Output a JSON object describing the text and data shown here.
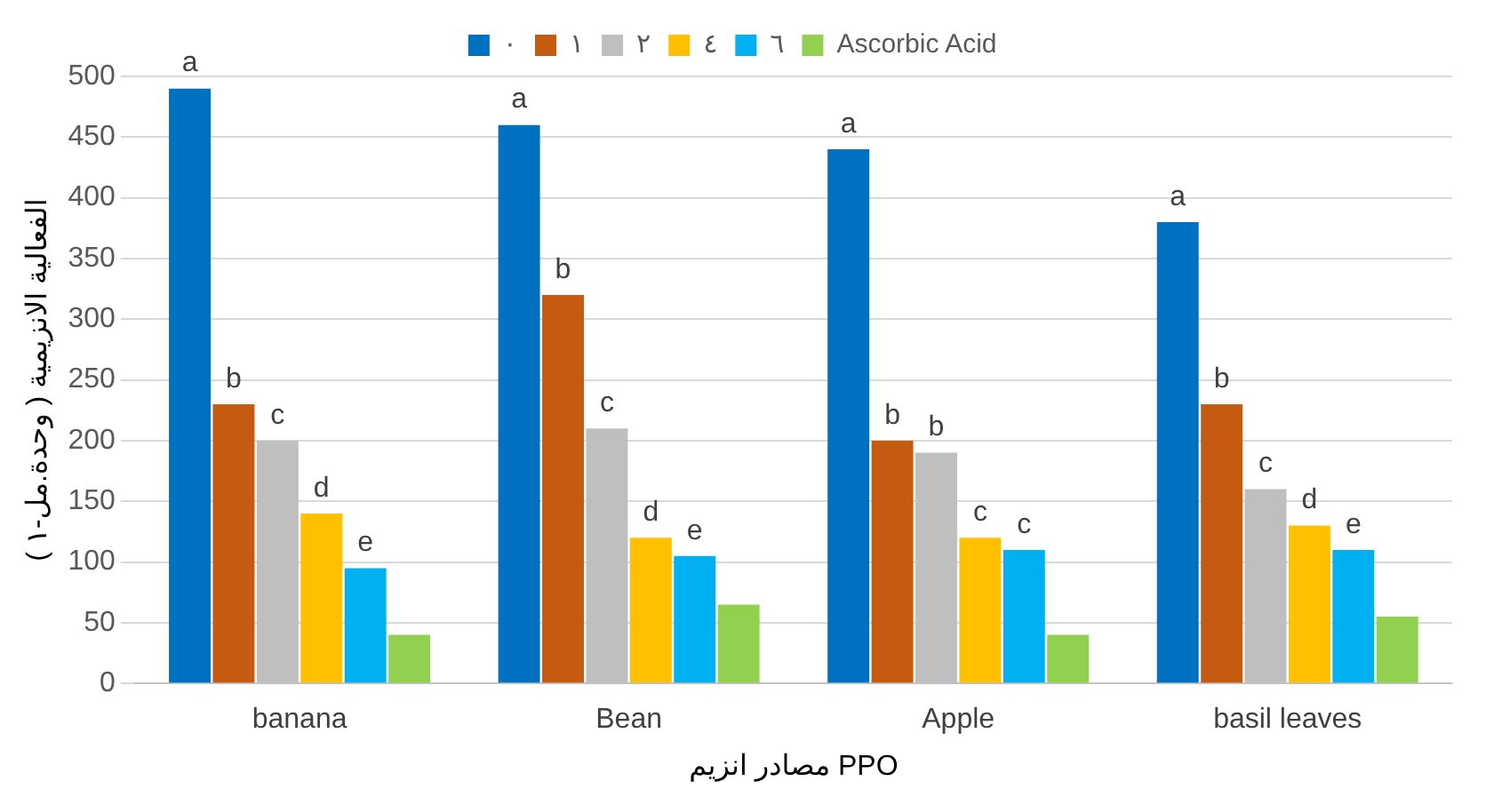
{
  "chart_data": {
    "type": "bar",
    "xlabel": "مصادر انزيم PPO",
    "ylabel": "الفعالية الانزيمية ( وحدة.مل-١ )",
    "categories": [
      "banana",
      "Bean",
      "Apple",
      "basil leaves"
    ],
    "series": [
      {
        "name": "٠",
        "color": "#0070c0",
        "values": [
          490,
          460,
          440,
          380
        ],
        "value_labels": [
          "a",
          "a",
          "a",
          "a"
        ]
      },
      {
        "name": "١",
        "color": "#c55a11",
        "values": [
          230,
          320,
          200,
          230
        ],
        "value_labels": [
          "b",
          "b",
          "b",
          "b"
        ]
      },
      {
        "name": "٢",
        "color": "#bfbfbf",
        "values": [
          200,
          210,
          190,
          160
        ],
        "value_labels": [
          "c",
          "c",
          "b",
          "c"
        ]
      },
      {
        "name": "٤",
        "color": "#ffc000",
        "values": [
          140,
          120,
          120,
          130
        ],
        "value_labels": [
          "d",
          "d",
          "c",
          "d"
        ]
      },
      {
        "name": "٦",
        "color": "#00b0f0",
        "values": [
          95,
          105,
          110,
          110
        ],
        "value_labels": [
          "e",
          "e",
          "c",
          "e"
        ]
      },
      {
        "name": "Ascorbic Acid",
        "color": "#92d050",
        "values": [
          40,
          65,
          40,
          55
        ]
      }
    ],
    "ylim": [
      0,
      500
    ],
    "yticks": [
      0,
      50,
      100,
      150,
      200,
      250,
      300,
      350,
      400,
      450,
      500
    ],
    "grid": "y",
    "legend": "top"
  }
}
